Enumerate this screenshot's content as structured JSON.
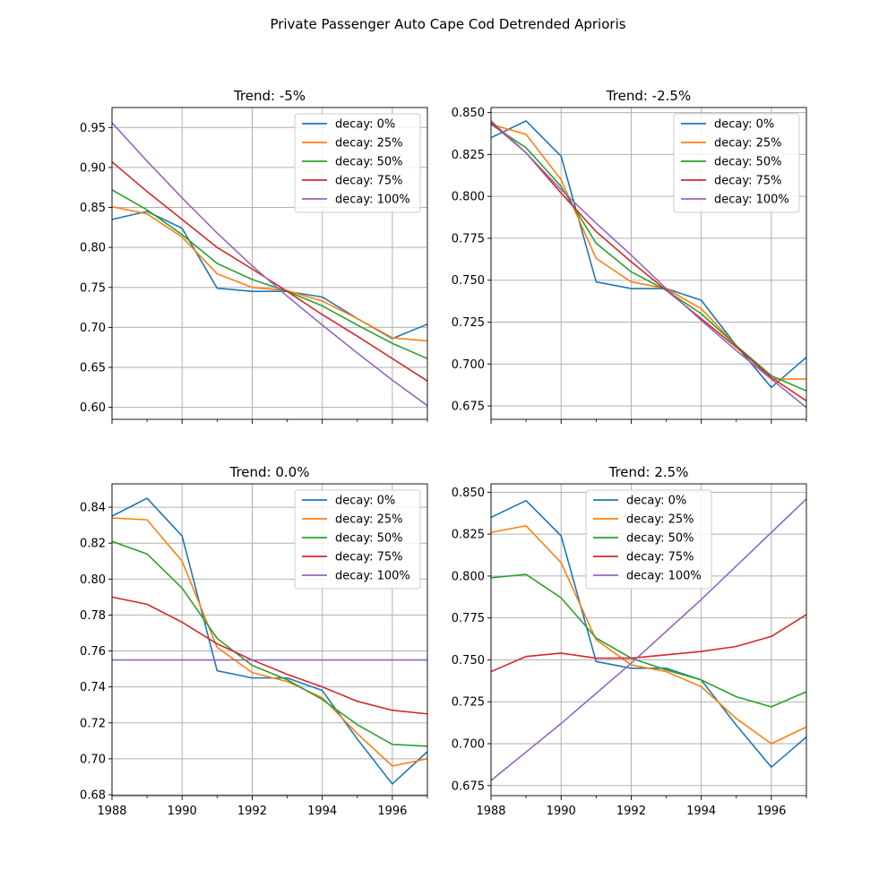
{
  "figure": {
    "title": "Private Passenger Auto Cape Cod Detrended Aprioris"
  },
  "legend_labels": [
    "decay: 0%",
    "decay: 25%",
    "decay: 50%",
    "decay: 75%",
    "decay: 100%"
  ],
  "colors": [
    "#1f77b4",
    "#ff7f0e",
    "#2ca02c",
    "#d62728",
    "#9467bd"
  ],
  "chart_data": [
    {
      "type": "line",
      "title": "Trend: -5%",
      "x": [
        1988,
        1989,
        1990,
        1991,
        1992,
        1993,
        1994,
        1995,
        1996,
        1997
      ],
      "xlim": [
        1988,
        1997
      ],
      "ylim": [
        0.585,
        0.975
      ],
      "yticks": [
        "0.60",
        "0.65",
        "0.70",
        "0.75",
        "0.80",
        "0.85",
        "0.90",
        "0.95"
      ],
      "xticks": [],
      "grid": true,
      "legend": "upper right",
      "series": [
        {
          "name": "decay: 0%",
          "values": [
            0.835,
            0.845,
            0.824,
            0.749,
            0.745,
            0.745,
            0.738,
            0.711,
            0.686,
            0.704
          ]
        },
        {
          "name": "decay: 25%",
          "values": [
            0.851,
            0.842,
            0.813,
            0.767,
            0.75,
            0.746,
            0.733,
            0.711,
            0.687,
            0.683
          ]
        },
        {
          "name": "decay: 50%",
          "values": [
            0.872,
            0.847,
            0.816,
            0.78,
            0.76,
            0.745,
            0.727,
            0.703,
            0.68,
            0.661
          ]
        },
        {
          "name": "decay: 75%",
          "values": [
            0.907,
            0.87,
            0.835,
            0.8,
            0.773,
            0.745,
            0.716,
            0.689,
            0.661,
            0.633
          ]
        },
        {
          "name": "decay: 100%",
          "values": [
            0.956,
            0.908,
            0.862,
            0.818,
            0.777,
            0.739,
            0.703,
            0.668,
            0.634,
            0.602
          ]
        }
      ]
    },
    {
      "type": "line",
      "title": "Trend: -2.5%",
      "x": [
        1988,
        1989,
        1990,
        1991,
        1992,
        1993,
        1994,
        1995,
        1996,
        1997
      ],
      "xlim": [
        1988,
        1997
      ],
      "ylim": [
        0.667,
        0.853
      ],
      "yticks": [
        "0.675",
        "0.700",
        "0.725",
        "0.750",
        "0.775",
        "0.800",
        "0.825",
        "0.850"
      ],
      "xticks": [],
      "grid": true,
      "legend": "upper right",
      "series": [
        {
          "name": "decay: 0%",
          "values": [
            0.835,
            0.845,
            0.824,
            0.749,
            0.745,
            0.745,
            0.738,
            0.711,
            0.686,
            0.704
          ]
        },
        {
          "name": "decay: 25%",
          "values": [
            0.843,
            0.837,
            0.81,
            0.763,
            0.749,
            0.745,
            0.733,
            0.711,
            0.691,
            0.691
          ]
        },
        {
          "name": "decay: 50%",
          "values": [
            0.843,
            0.829,
            0.806,
            0.772,
            0.755,
            0.744,
            0.73,
            0.711,
            0.693,
            0.684
          ]
        },
        {
          "name": "decay: 75%",
          "values": [
            0.844,
            0.826,
            0.802,
            0.779,
            0.761,
            0.744,
            0.727,
            0.71,
            0.692,
            0.678
          ]
        },
        {
          "name": "decay: 100%",
          "values": [
            0.845,
            0.826,
            0.804,
            0.784,
            0.765,
            0.745,
            0.726,
            0.708,
            0.691,
            0.674
          ]
        }
      ]
    },
    {
      "type": "line",
      "title": "Trend: 0.0%",
      "x": [
        1988,
        1989,
        1990,
        1991,
        1992,
        1993,
        1994,
        1995,
        1996,
        1997
      ],
      "xlim": [
        1988,
        1997
      ],
      "ylim": [
        0.6795,
        0.853
      ],
      "yticks": [
        "0.68",
        "0.70",
        "0.72",
        "0.74",
        "0.76",
        "0.78",
        "0.80",
        "0.82",
        "0.84"
      ],
      "xticks": [
        "1988",
        "1990",
        "1992",
        "1994",
        "1996"
      ],
      "grid": true,
      "legend": "upper right",
      "series": [
        {
          "name": "decay: 0%",
          "values": [
            0.835,
            0.845,
            0.824,
            0.749,
            0.745,
            0.745,
            0.738,
            0.711,
            0.686,
            0.704
          ]
        },
        {
          "name": "decay: 25%",
          "values": [
            0.834,
            0.833,
            0.81,
            0.762,
            0.748,
            0.743,
            0.734,
            0.714,
            0.696,
            0.7
          ]
        },
        {
          "name": "decay: 50%",
          "values": [
            0.821,
            0.814,
            0.795,
            0.767,
            0.752,
            0.744,
            0.733,
            0.719,
            0.708,
            0.707
          ]
        },
        {
          "name": "decay: 75%",
          "values": [
            0.79,
            0.786,
            0.776,
            0.764,
            0.755,
            0.747,
            0.74,
            0.732,
            0.727,
            0.725
          ]
        },
        {
          "name": "decay: 100%",
          "values": [
            0.755,
            0.755,
            0.755,
            0.755,
            0.755,
            0.755,
            0.755,
            0.755,
            0.755,
            0.755
          ]
        }
      ]
    },
    {
      "type": "line",
      "title": "Trend: 2.5%",
      "x": [
        1988,
        1989,
        1990,
        1991,
        1992,
        1993,
        1994,
        1995,
        1996,
        1997
      ],
      "xlim": [
        1988,
        1997
      ],
      "ylim": [
        0.669,
        0.855
      ],
      "yticks": [
        "0.675",
        "0.700",
        "0.725",
        "0.750",
        "0.775",
        "0.800",
        "0.825",
        "0.850"
      ],
      "xticks": [
        "1988",
        "1990",
        "1992",
        "1994",
        "1996"
      ],
      "grid": true,
      "legend": "upper center",
      "series": [
        {
          "name": "decay: 0%",
          "values": [
            0.835,
            0.845,
            0.824,
            0.749,
            0.745,
            0.745,
            0.738,
            0.711,
            0.686,
            0.704
          ]
        },
        {
          "name": "decay: 25%",
          "values": [
            0.826,
            0.83,
            0.808,
            0.762,
            0.747,
            0.743,
            0.734,
            0.715,
            0.7,
            0.71
          ]
        },
        {
          "name": "decay: 50%",
          "values": [
            0.799,
            0.801,
            0.787,
            0.763,
            0.751,
            0.744,
            0.738,
            0.728,
            0.722,
            0.731
          ]
        },
        {
          "name": "decay: 75%",
          "values": [
            0.743,
            0.752,
            0.754,
            0.751,
            0.751,
            0.753,
            0.755,
            0.758,
            0.764,
            0.777
          ]
        },
        {
          "name": "decay: 100%",
          "values": [
            0.678,
            0.695,
            0.712,
            0.73,
            0.748,
            0.767,
            0.786,
            0.806,
            0.826,
            0.846
          ]
        }
      ]
    }
  ]
}
